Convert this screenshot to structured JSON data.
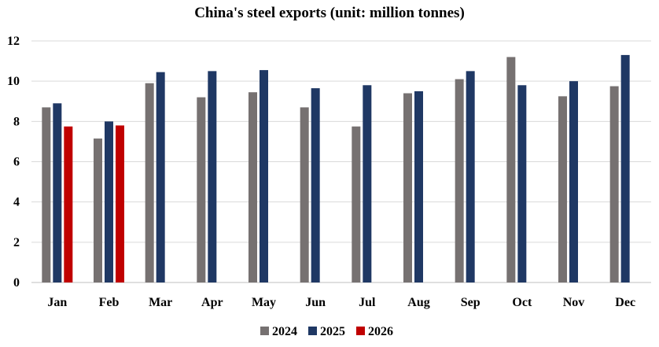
{
  "chart_data": {
    "type": "bar",
    "title": "China's steel exports (unit: million tonnes)",
    "xlabel": "",
    "ylabel": "",
    "ylim": [
      0,
      12
    ],
    "yticks": [
      0,
      2,
      4,
      6,
      8,
      10,
      12
    ],
    "grid": true,
    "legend_position": "bottom",
    "categories": [
      "Jan",
      "Feb",
      "Mar",
      "Apr",
      "May",
      "Jun",
      "Jul",
      "Aug",
      "Sep",
      "Oct",
      "Nov",
      "Dec"
    ],
    "series": [
      {
        "name": "2024",
        "color": "#767171",
        "values": [
          8.7,
          7.15,
          9.9,
          9.2,
          9.45,
          8.7,
          7.75,
          9.4,
          10.1,
          11.2,
          9.25,
          9.75
        ]
      },
      {
        "name": "2025",
        "color": "#1f3864",
        "values": [
          8.9,
          8.0,
          10.45,
          10.5,
          10.55,
          9.65,
          9.8,
          9.5,
          10.5,
          9.8,
          10.0,
          11.3
        ]
      },
      {
        "name": "2026",
        "color": "#c00000",
        "values": [
          7.75,
          7.8,
          null,
          null,
          null,
          null,
          null,
          null,
          null,
          null,
          null,
          null
        ]
      }
    ]
  }
}
